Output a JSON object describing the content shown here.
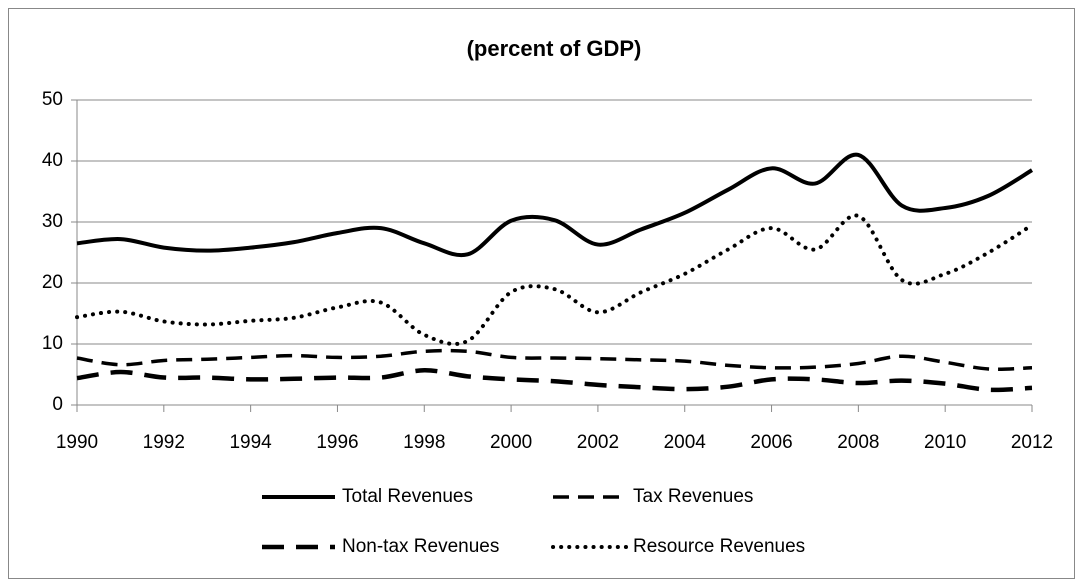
{
  "chart_data": {
    "type": "line",
    "title": "(percent of GDP)",
    "x": [
      1990,
      1991,
      1992,
      1993,
      1994,
      1995,
      1996,
      1997,
      1998,
      1999,
      2000,
      2001,
      2002,
      2003,
      2004,
      2005,
      2006,
      2007,
      2008,
      2009,
      2010,
      2011,
      2012
    ],
    "xlim": [
      1990,
      2012
    ],
    "xticks": [
      1990,
      1992,
      1994,
      1996,
      1998,
      2000,
      2002,
      2004,
      2006,
      2008,
      2010,
      2012
    ],
    "ylim": [
      0,
      50
    ],
    "yticks": [
      0,
      10,
      20,
      30,
      40,
      50
    ],
    "grid": true,
    "legend": "bottom",
    "series": [
      {
        "name": "Total Revenues",
        "color": "#000000",
        "line_style": "solid",
        "values": [
          26.5,
          27.2,
          25.8,
          25.3,
          25.8,
          26.7,
          28.2,
          29.0,
          26.5,
          24.7,
          30.2,
          30.3,
          26.3,
          28.8,
          31.5,
          35.3,
          38.8,
          36.3,
          41.0,
          32.7,
          32.3,
          34.3,
          38.5
        ]
      },
      {
        "name": "Tax Revenues",
        "color": "#000000",
        "line_style": "dashed",
        "values": [
          7.7,
          6.6,
          7.3,
          7.5,
          7.8,
          8.1,
          7.8,
          8.0,
          8.8,
          8.8,
          7.8,
          7.7,
          7.6,
          7.4,
          7.2,
          6.5,
          6.1,
          6.2,
          6.8,
          8.0,
          7.0,
          5.9,
          6.1
        ]
      },
      {
        "name": "Non-tax Revenues",
        "color": "#000000",
        "line_style": "long-dashed",
        "values": [
          4.4,
          5.4,
          4.5,
          4.5,
          4.2,
          4.3,
          4.5,
          4.5,
          5.7,
          4.7,
          4.2,
          3.9,
          3.3,
          2.9,
          2.6,
          3.0,
          4.2,
          4.2,
          3.6,
          4.0,
          3.5,
          2.5,
          2.8
        ]
      },
      {
        "name": "Resource Revenues",
        "color": "#000000",
        "line_style": "dotted",
        "values": [
          14.4,
          15.3,
          13.7,
          13.2,
          13.8,
          14.3,
          16.0,
          16.8,
          11.5,
          10.5,
          18.5,
          19.0,
          15.2,
          18.5,
          21.5,
          25.5,
          29.0,
          25.5,
          31.0,
          20.5,
          21.5,
          25.0,
          29.5
        ]
      }
    ]
  }
}
